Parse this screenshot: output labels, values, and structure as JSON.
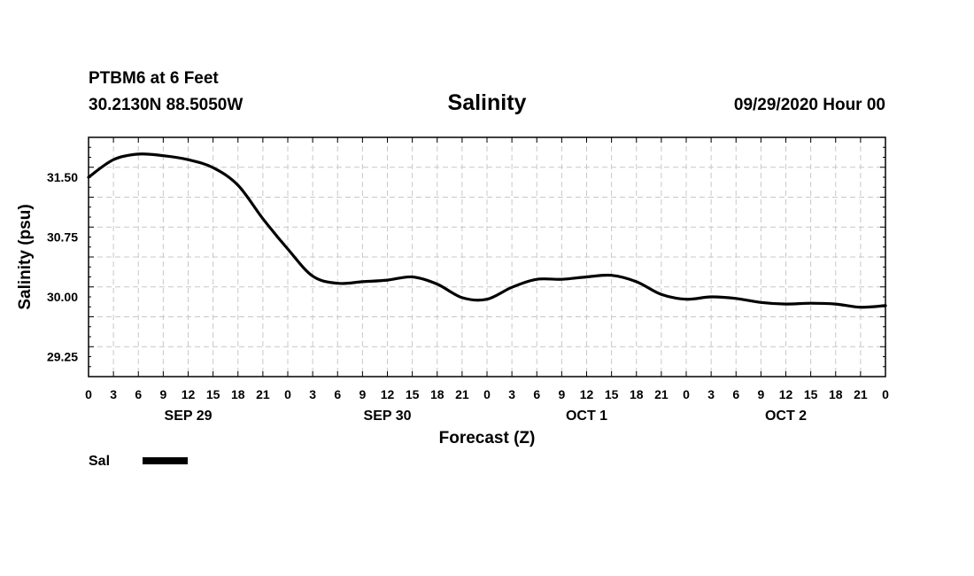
{
  "header": {
    "station": "PTBM6 at 6 Feet",
    "coords": "30.2130N 88.5050W",
    "title": "Salinity",
    "run": "09/29/2020 Hour 00"
  },
  "legend": {
    "label": "Sal"
  },
  "chart_data": {
    "type": "line",
    "title": "Salinity",
    "xlabel": "Forecast (Z)",
    "ylabel": "Salinity (psu)",
    "ylim": [
      29.0,
      32.0
    ],
    "y_ticks": [
      "29.25",
      "30.00",
      "30.75",
      "31.50"
    ],
    "x_hour_ticks": [
      "0",
      "3",
      "6",
      "9",
      "12",
      "15",
      "18",
      "21",
      "0",
      "3",
      "6",
      "9",
      "12",
      "15",
      "18",
      "21",
      "0",
      "3",
      "6",
      "9",
      "12",
      "15",
      "18",
      "21",
      "0",
      "3",
      "6",
      "9",
      "12",
      "15",
      "18",
      "21",
      "0"
    ],
    "x_day_labels": [
      "SEP 29",
      "SEP 30",
      "OCT 1",
      "OCT 2"
    ],
    "grid": true,
    "legend_position": "bottom-left",
    "series": [
      {
        "name": "Sal",
        "color": "#000000",
        "x": [
          "2020-09-29T00",
          "2020-09-29T03",
          "2020-09-29T06",
          "2020-09-29T09",
          "2020-09-29T12",
          "2020-09-29T15",
          "2020-09-29T18",
          "2020-09-29T21",
          "2020-09-30T00",
          "2020-09-30T03",
          "2020-09-30T06",
          "2020-09-30T09",
          "2020-09-30T12",
          "2020-09-30T15",
          "2020-09-30T18",
          "2020-09-30T21",
          "2020-10-01T00",
          "2020-10-01T03",
          "2020-10-01T06",
          "2020-10-01T09",
          "2020-10-01T12",
          "2020-10-01T15",
          "2020-10-01T18",
          "2020-10-01T21",
          "2020-10-02T00",
          "2020-10-02T03",
          "2020-10-02T06",
          "2020-10-02T09",
          "2020-10-02T12",
          "2020-10-02T15",
          "2020-10-02T18",
          "2020-10-02T21",
          "2020-10-03T00"
        ],
        "values": [
          31.5,
          31.72,
          31.79,
          31.77,
          31.72,
          31.62,
          31.4,
          30.98,
          30.6,
          30.26,
          30.17,
          30.19,
          30.21,
          30.25,
          30.16,
          29.99,
          29.97,
          30.12,
          30.22,
          30.22,
          30.25,
          30.27,
          30.19,
          30.03,
          29.97,
          30.0,
          29.98,
          29.93,
          29.91,
          29.92,
          29.91,
          29.87,
          29.89
        ]
      }
    ]
  }
}
